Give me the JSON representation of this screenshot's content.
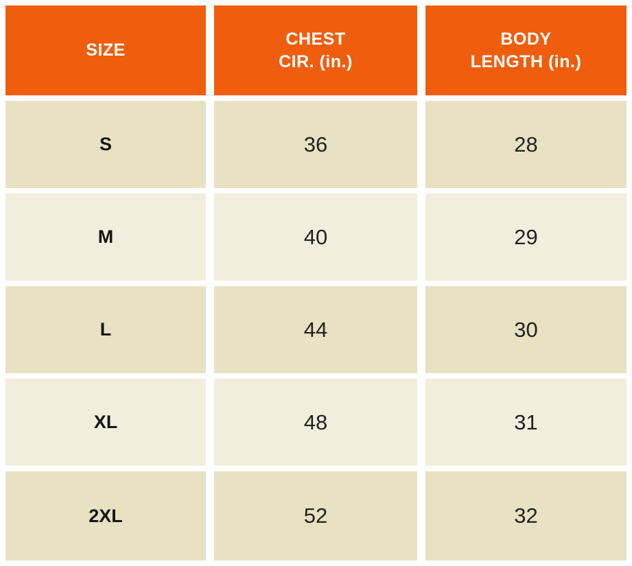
{
  "table": {
    "header": {
      "size": "SIZE",
      "chest_line1": "CHEST",
      "chest_line2": "CIR. (in.)",
      "body_line1": "BODY",
      "body_line2": "LENGTH (in.)"
    },
    "rows": [
      {
        "size": "S",
        "chest": "36",
        "body": "28"
      },
      {
        "size": "M",
        "chest": "40",
        "body": "29"
      },
      {
        "size": "L",
        "chest": "44",
        "body": "30"
      },
      {
        "size": "XL",
        "chest": "48",
        "body": "31"
      },
      {
        "size": "2XL",
        "chest": "52",
        "body": "32"
      }
    ]
  },
  "colors": {
    "header_bg": "#F05E0D",
    "header_text": "#FFFFFF",
    "row_dark_bg": "#E8E1C2",
    "row_light_bg": "#F2EEDE",
    "cell_text": "#222222",
    "gutter": "#FFFFFF"
  },
  "chart_data": {
    "type": "table",
    "title": "",
    "columns": [
      "SIZE",
      "CHEST CIR. (in.)",
      "BODY LENGTH (in.)"
    ],
    "rows": [
      [
        "S",
        36,
        28
      ],
      [
        "M",
        40,
        29
      ],
      [
        "L",
        44,
        30
      ],
      [
        "XL",
        48,
        31
      ],
      [
        "2XL",
        52,
        32
      ]
    ],
    "layout_hints": {
      "header_style": "orange background, white bold text",
      "row_striping": "alternating tan (#E8E1C2) and cream (#F2EEDE), starting tan",
      "grid": "white gutters between all cells, no borders"
    }
  }
}
